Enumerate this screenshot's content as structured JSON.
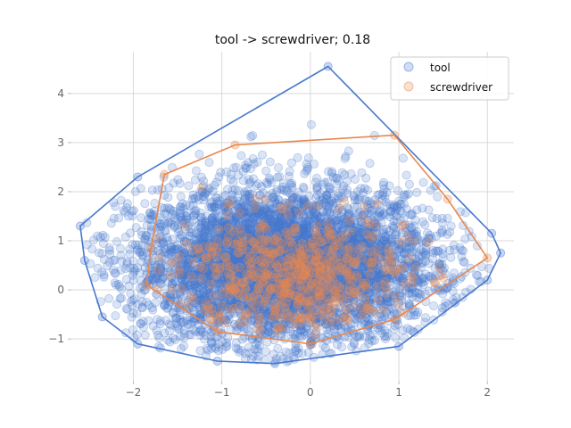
{
  "chart_data": {
    "type": "scatter",
    "title": "tool -> screwdriver; 0.18",
    "xlabel": "",
    "ylabel": "",
    "xlim": [
      -2.7,
      2.3
    ],
    "ylim": [
      -1.85,
      4.85
    ],
    "x_ticks": [
      -2,
      -1,
      0,
      1,
      2
    ],
    "y_ticks": [
      -1,
      0,
      1,
      2,
      3,
      4
    ],
    "x_tick_labels": [
      "−2",
      "−1",
      "0",
      "1",
      "2"
    ],
    "y_tick_labels": [
      "−1",
      "0",
      "1",
      "2",
      "3",
      "4"
    ],
    "grid": true,
    "legend": "top-right",
    "series": [
      {
        "name": "tool",
        "color": "#4878cf",
        "point_count": 5000,
        "center": [
          -0.3,
          0.5
        ],
        "spread": [
          0.85,
          0.8
        ],
        "hull": [
          [
            0.2,
            4.55
          ],
          [
            2.05,
            1.15
          ],
          [
            2.15,
            0.75
          ],
          [
            2.0,
            0.2
          ],
          [
            1.0,
            -1.15
          ],
          [
            -0.4,
            -1.5
          ],
          [
            -1.05,
            -1.45
          ],
          [
            -1.95,
            -1.1
          ],
          [
            -2.35,
            -0.55
          ],
          [
            -2.55,
            0.6
          ],
          [
            -2.6,
            1.3
          ],
          [
            -1.95,
            2.3
          ]
        ]
      },
      {
        "name": "screwdriver",
        "color": "#e8884e",
        "point_count": 600,
        "center": [
          -0.2,
          0.3
        ],
        "spread": [
          0.65,
          0.6
        ],
        "hull": [
          [
            0.95,
            3.15
          ],
          [
            1.55,
            1.85
          ],
          [
            2.0,
            0.65
          ],
          [
            0.95,
            -0.6
          ],
          [
            0.0,
            -1.1
          ],
          [
            -1.05,
            -0.85
          ],
          [
            -1.85,
            0.1
          ],
          [
            -1.8,
            0.85
          ],
          [
            -1.65,
            2.35
          ],
          [
            -0.85,
            2.95
          ]
        ]
      }
    ]
  }
}
